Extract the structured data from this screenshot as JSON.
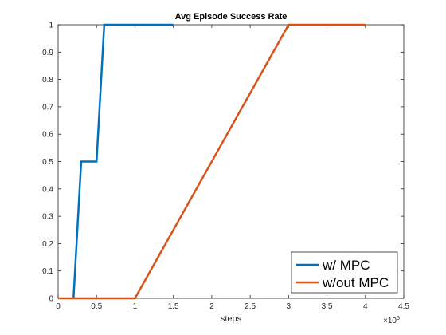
{
  "chart_data": {
    "type": "line",
    "title": "Avg Episode Success Rate",
    "xlabel": "steps",
    "ylabel": "",
    "x_exponent_label": "×10",
    "x_exponent_power": "5",
    "xlim": [
      0,
      4.5
    ],
    "ylim": [
      0,
      1
    ],
    "x_ticks": [
      "0",
      "0.5",
      "1",
      "1.5",
      "2",
      "2.5",
      "3",
      "3.5",
      "4",
      "4.5"
    ],
    "y_ticks": [
      "0",
      "0.1",
      "0.2",
      "0.3",
      "0.4",
      "0.5",
      "0.6",
      "0.7",
      "0.8",
      "0.9",
      "1"
    ],
    "x_tick_values": [
      0,
      0.5,
      1,
      1.5,
      2,
      2.5,
      3,
      3.5,
      4,
      4.5
    ],
    "y_tick_values": [
      0,
      0.1,
      0.2,
      0.3,
      0.4,
      0.5,
      0.6,
      0.7,
      0.8,
      0.9,
      1
    ],
    "grid": false,
    "legend_position": "bottom-right",
    "series": [
      {
        "name": "w/ MPC",
        "color": "#0072BD",
        "x": [
          0.2,
          0.3,
          0.5,
          0.6,
          1.5
        ],
        "y": [
          0,
          0.5,
          0.5,
          1,
          1
        ]
      },
      {
        "name": "w/out MPC",
        "color": "#D95319",
        "x": [
          0,
          1,
          3,
          4
        ],
        "y": [
          0,
          0,
          1,
          1
        ]
      }
    ]
  }
}
